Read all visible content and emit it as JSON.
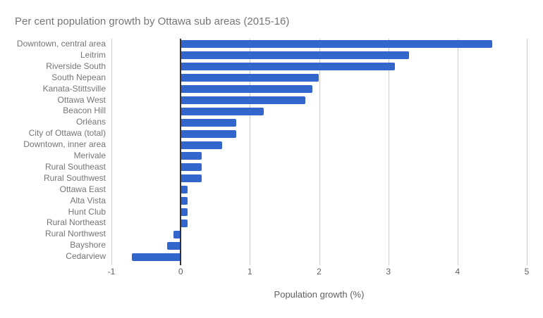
{
  "chart_data": {
    "type": "bar",
    "orientation": "horizontal",
    "title": "Per cent population growth by Ottawa sub areas (2015-16)",
    "xlabel": "Population growth (%)",
    "ylabel": "",
    "categories": [
      "Downtown, central area",
      "Leitrim",
      "Riverside South",
      "South Nepean",
      "Kanata-Stittsville",
      "Ottawa West",
      "Beacon Hill",
      "Orléans",
      "City of Ottawa (total)",
      "Downtown, inner area",
      "Merivale",
      "Rural Southeast",
      "Rural Southwest",
      "Ottawa East",
      "Alta Vista",
      "Hunt Club",
      "Rural Northeast",
      "Rural Northwest",
      "Bayshore",
      "Cedarview"
    ],
    "values": [
      4.5,
      3.3,
      3.1,
      2.0,
      1.9,
      1.8,
      1.2,
      0.8,
      0.8,
      0.6,
      0.3,
      0.3,
      0.3,
      0.1,
      0.1,
      0.1,
      0.1,
      -0.1,
      -0.2,
      -0.7
    ],
    "xlim": [
      -1,
      5
    ],
    "x_ticks": [
      -1,
      0,
      1,
      2,
      3,
      4,
      5
    ],
    "grid": true,
    "legend": "none"
  },
  "colors": {
    "background": "#ffffff",
    "bar": "#3366cc",
    "gridline": "#cccccc",
    "zero_line": "#333333",
    "title_text": "#757575",
    "tick_text": "#616161",
    "category_text": "#757575"
  }
}
